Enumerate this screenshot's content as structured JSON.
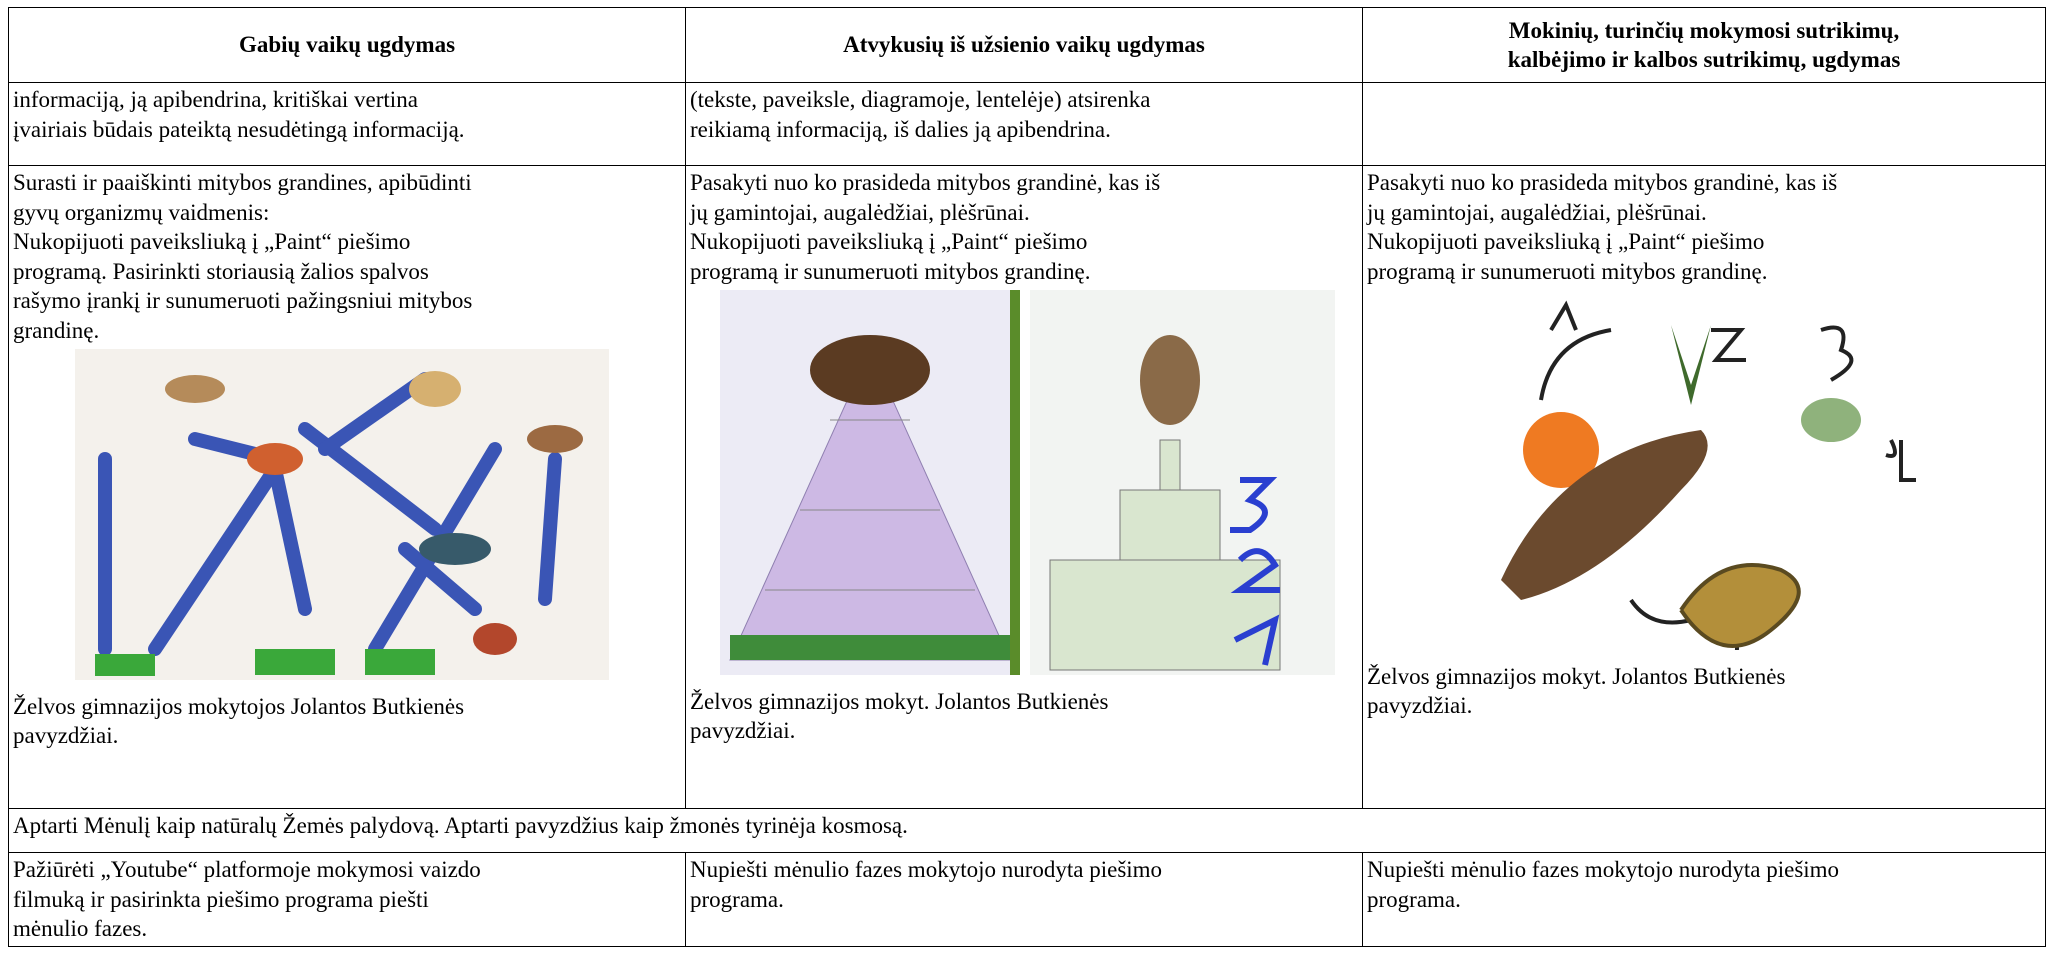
{
  "table": {
    "header": [
      {
        "lines": [
          "Gabių vaikų ugdymas"
        ]
      },
      {
        "lines": [
          "Atvykusių iš užsienio vaikų ugdymas"
        ]
      },
      {
        "lines": [
          "Mokinių, turinčių mokymosi sutrikimų,",
          "kalbėjimo ir kalbos sutrikimų, ugdymas"
        ]
      }
    ],
    "rows": [
      {
        "cells": [
          {
            "lines": [
              "informaciją, ją apibendrina, kritiškai vertina",
              "įvairiais būdais pateiktą nesudėtingą informaciją."
            ]
          },
          {
            "lines": [
              "(tekste, paveiksle, diagramoje, lentelėje) atsirenka",
              "reikiamą informaciją, iš dalies ją apibendrina."
            ]
          }
        ]
      },
      {
        "cells": [
          {
            "lines": [
              "Surasti ir paaiškinti mitybos grandines, apibūdinti",
              "gyvų organizmų vaidmenis:",
              "Nukopijuoti paveiksliuką į „Paint“ piešimo",
              "programą. Pasirinkti storiausią žalios spalvos",
              "rašymo įrankį ir sunumeruoti pažingsniui mitybos",
              "grandinę."
            ],
            "caption": [
              "Želvos gimnazijos mokytojos Jolantos Butkienės",
              "pavyzdžiai."
            ]
          },
          {
            "lines": [
              "Pasakyti nuo ko prasideda mitybos grandinė, kas iš",
              "jų gamintojai, augalėdžiai, plėšrūnai.",
              "Nukopijuoti paveiksliuką į „Paint“ piešimo",
              "programą ir sunumeruoti mitybos grandinę."
            ],
            "caption": [
              "Želvos gimnazijos mokyt. Jolantos Butkienės",
              "pavyzdžiai."
            ]
          },
          {
            "lines": [
              "Pasakyti nuo ko prasideda mitybos grandinė, kas iš",
              "jų gamintojai, augalėdžiai, plėšrūnai.",
              "Nukopijuoti paveiksliuką į „Paint“ piešimo",
              "programą ir sunumeruoti mitybos grandinę."
            ],
            "caption": [
              "Želvos gimnazijos mokyt. Jolantos Butkienės",
              "pavyzdžiai."
            ]
          }
        ]
      },
      {
        "cells": [
          {
            "lines": [
              "Aptarti Mėnulį kaip natūralų Žemės palydovą. Aptarti pavyzdžius kaip žmonės tyrinėja kosmosą."
            ]
          }
        ]
      },
      {
        "cells": [
          {
            "lines": [
              "Pažiūrėti „Youtube“ platformoje mokymosi vaizdo",
              "filmuką ir pasirinkta piešimo programa piešti",
              "mėnulio fazes."
            ]
          },
          {
            "lines": [
              "Nupiešti mėnulio fazes mokytojo nurodyta piešimo",
              "programa."
            ]
          },
          {
            "lines": [
              "Nupiešti mėnulio fazes mokytojo nurodyta piešimo",
              "programa."
            ]
          }
        ]
      }
    ]
  }
}
